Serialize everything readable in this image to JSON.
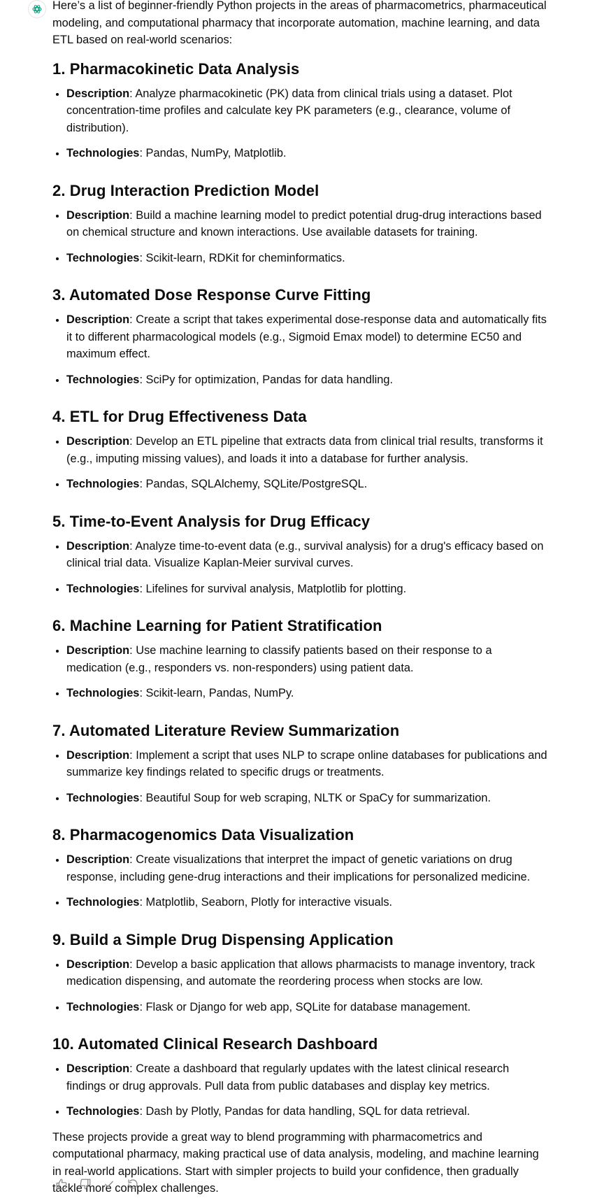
{
  "intro": "Here’s a list of beginner-friendly Python projects in the areas of pharmacometrics, pharmaceutical modeling, and computational pharmacy that incorporate automation, machine learning, and data ETL based on real-world scenarios:",
  "description_label": "Description",
  "technologies_label": "Technologies",
  "projects": [
    {
      "heading": "1. Pharmacokinetic Data Analysis",
      "description": ": Analyze pharmacokinetic (PK) data from clinical trials using a dataset. Plot concentration-time profiles and calculate key PK parameters (e.g., clearance, volume of distribution).",
      "technologies": ": Pandas, NumPy, Matplotlib."
    },
    {
      "heading": "2. Drug Interaction Prediction Model",
      "description": ": Build a machine learning model to predict potential drug-drug interactions based on chemical structure and known interactions. Use available datasets for training.",
      "technologies": ": Scikit-learn, RDKit for cheminformatics."
    },
    {
      "heading": "3. Automated Dose Response Curve Fitting",
      "description": ": Create a script that takes experimental dose-response data and automatically fits it to different pharmacological models (e.g., Sigmoid Emax model) to determine EC50 and maximum effect.",
      "technologies": ": SciPy for optimization, Pandas for data handling."
    },
    {
      "heading": "4. ETL for Drug Effectiveness Data",
      "description": ": Develop an ETL pipeline that extracts data from clinical trial results, transforms it (e.g., imputing missing values), and loads it into a database for further analysis.",
      "technologies": ": Pandas, SQLAlchemy, SQLite/PostgreSQL."
    },
    {
      "heading": "5. Time-to-Event Analysis for Drug Efficacy",
      "description": ": Analyze time-to-event data (e.g., survival analysis) for a drug's efficacy based on clinical trial data. Visualize Kaplan-Meier survival curves.",
      "technologies": ": Lifelines for survival analysis, Matplotlib for plotting."
    },
    {
      "heading": "6. Machine Learning for Patient Stratification",
      "description": ": Use machine learning to classify patients based on their response to a medication (e.g., responders vs. non-responders) using patient data.",
      "technologies": ": Scikit-learn, Pandas, NumPy."
    },
    {
      "heading": "7. Automated Literature Review Summarization",
      "description": ": Implement a script that uses NLP to scrape online databases for publications and summarize key findings related to specific drugs or treatments.",
      "technologies": ": Beautiful Soup for web scraping, NLTK or SpaCy for summarization."
    },
    {
      "heading": "8. Pharmacogenomics Data Visualization",
      "description": ": Create visualizations that interpret the impact of genetic variations on drug response, including gene-drug interactions and their implications for personalized medicine.",
      "technologies": ": Matplotlib, Seaborn, Plotly for interactive visuals."
    },
    {
      "heading": "9. Build a Simple Drug Dispensing Application",
      "description": ": Develop a basic application that allows pharmacists to manage inventory, track medication dispensing, and automate the reordering process when stocks are low.",
      "technologies": ": Flask or Django for web app, SQLite for database management."
    },
    {
      "heading": "10. Automated Clinical Research Dashboard",
      "description": ": Create a dashboard that regularly updates with the latest clinical research findings or drug approvals. Pull data from public databases and display key metrics.",
      "technologies": ": Dash by Plotly, Pandas for data handling, SQL for data retrieval."
    }
  ],
  "outro": "These projects provide a great way to blend programming with pharmacometrics and computational pharmacy, making practical use of data analysis, modeling, and machine learning in real-world applications. Start with simpler projects to build your confidence, then gradually tackle more complex challenges.",
  "actions": [
    "thumbs-up-icon",
    "thumbs-down-icon",
    "check-icon",
    "regenerate-icon"
  ]
}
